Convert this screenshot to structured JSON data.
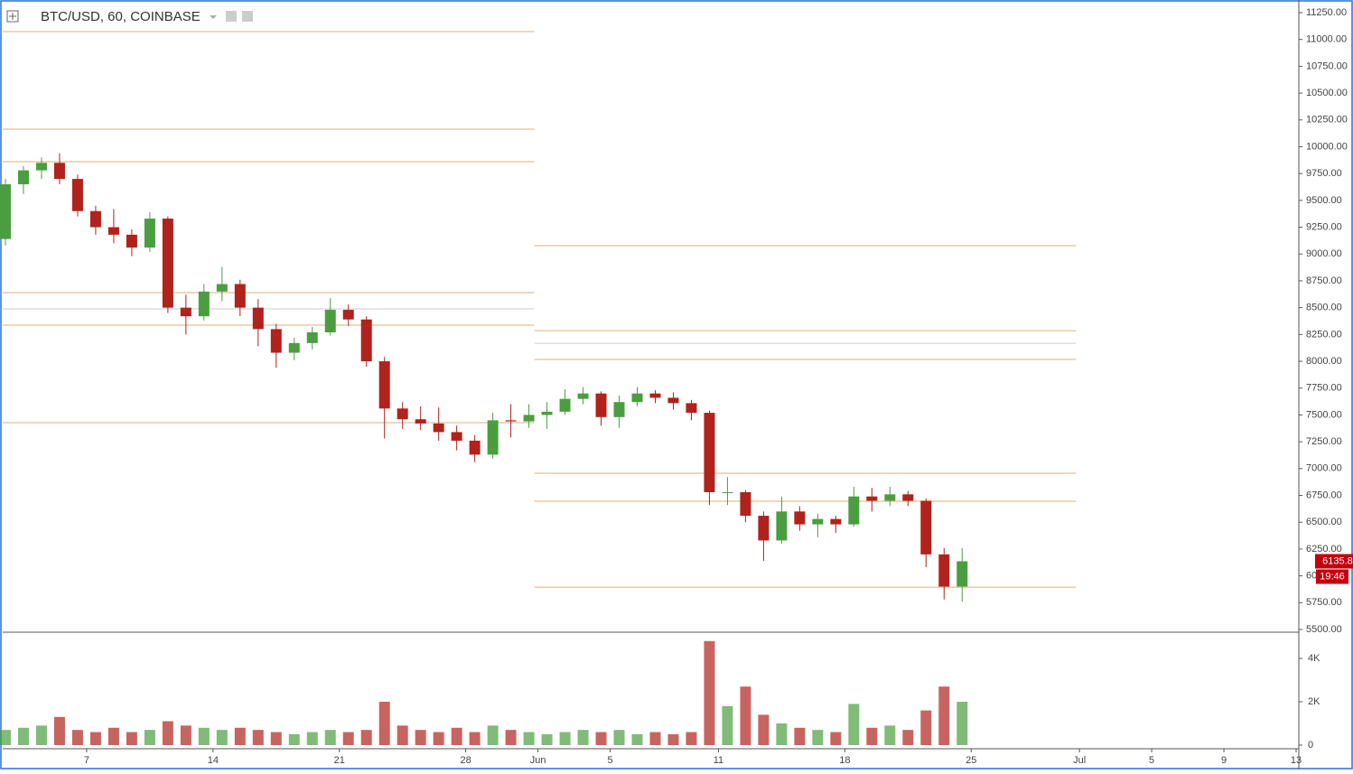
{
  "chart_data": {
    "type": "candlestick",
    "title": "BTC/USD, 60, COINBASE",
    "up_color": "#4a9e3f",
    "down_color": "#b0221b",
    "x": [
      2.5,
      3.5,
      4.5,
      5.5,
      6.5,
      7.5,
      8.5,
      9.5,
      10.5,
      11.5,
      12.5,
      13.5,
      14.5,
      15.5,
      16.5,
      17.5,
      18.5,
      19.5,
      20.5,
      21.5,
      22.5,
      23.5,
      24.5,
      25.5,
      26.5,
      27.5,
      28.5,
      29.5,
      30.5,
      31.5,
      32.5,
      33.5,
      34.5,
      35.5,
      36.5,
      37.5,
      38.5,
      39.5,
      40.5,
      41.5,
      42.5,
      43.5,
      44.5,
      45.5,
      46.5,
      47.5,
      48.5,
      49.5,
      50.5,
      51.5,
      52.5,
      53.5,
      54.5,
      55.5
    ],
    "open": [
      9140,
      9650,
      9780,
      9850,
      9700,
      9400,
      9250,
      9180,
      9060,
      9330,
      8500,
      8420,
      8650,
      8720,
      8500,
      8300,
      8080,
      8170,
      8270,
      8480,
      8390,
      8000,
      7560,
      7460,
      7420,
      7340,
      7260,
      7130,
      7450,
      7440,
      7500,
      7530,
      7650,
      7700,
      7480,
      7620,
      7700,
      7660,
      7610,
      7520,
      6780,
      6780,
      6560,
      6330,
      6600,
      6480,
      6530,
      6480,
      6740,
      6700,
      6760,
      6700,
      6200,
      5900
    ],
    "high": [
      9700,
      9820,
      9900,
      9940,
      9740,
      9450,
      9420,
      9230,
      9390,
      9350,
      8620,
      8720,
      8880,
      8760,
      8580,
      8350,
      8220,
      8320,
      8590,
      8530,
      8420,
      8040,
      7620,
      7580,
      7570,
      7400,
      7310,
      7520,
      7600,
      7600,
      7620,
      7740,
      7760,
      7720,
      7680,
      7760,
      7730,
      7710,
      7640,
      7540,
      6920,
      6800,
      6600,
      6740,
      6650,
      6580,
      6560,
      6830,
      6820,
      6830,
      6790,
      6720,
      6260,
      6260
    ],
    "low": [
      9080,
      9560,
      9700,
      9650,
      9350,
      9180,
      9100,
      8980,
      9020,
      8450,
      8250,
      8380,
      8560,
      8420,
      8140,
      7940,
      8010,
      8110,
      8240,
      8330,
      7950,
      7280,
      7370,
      7360,
      7260,
      7170,
      7060,
      7090,
      7290,
      7380,
      7370,
      7500,
      7600,
      7400,
      7380,
      7580,
      7610,
      7550,
      7450,
      6660,
      6660,
      6500,
      6140,
      6300,
      6420,
      6360,
      6400,
      6460,
      6600,
      6650,
      6650,
      6080,
      5780,
      5760
    ],
    "close": [
      9650,
      9780,
      9850,
      9700,
      9400,
      9250,
      9180,
      9060,
      9330,
      8500,
      8420,
      8650,
      8720,
      8500,
      8300,
      8080,
      8170,
      8270,
      8480,
      8390,
      8000,
      7560,
      7460,
      7420,
      7340,
      7260,
      7130,
      7450,
      7440,
      7500,
      7530,
      7650,
      7700,
      7480,
      7620,
      7700,
      7660,
      7610,
      7520,
      6780,
      6780,
      6560,
      6330,
      6600,
      6480,
      6530,
      6480,
      6740,
      6700,
      6760,
      6700,
      6200,
      5900,
      6135.8
    ],
    "xlim": [
      2.35,
      74.15
    ],
    "xticks": [
      7,
      14,
      21,
      28,
      {
        "value": 32,
        "label": "Jun"
      },
      {
        "value": 36,
        "label": "5"
      },
      {
        "value": 42,
        "label": "11"
      },
      {
        "value": 49,
        "label": "18"
      },
      {
        "value": 56,
        "label": "25"
      },
      {
        "value": 62,
        "label": "Jul"
      },
      {
        "value": 66,
        "label": "5"
      },
      {
        "value": 70,
        "label": "9"
      },
      {
        "value": 74,
        "label": "13"
      }
    ],
    "ylim": [
      5500,
      11250
    ],
    "yticks": [
      {
        "value": 5500,
        "label": "5500.00"
      },
      {
        "value": 5750,
        "label": "5750.00"
      },
      {
        "value": 6000,
        "label": "6000.00"
      },
      {
        "value": 6250,
        "label": "6250.00"
      },
      {
        "value": 6500,
        "label": "6500.00"
      },
      {
        "value": 6750,
        "label": "6750.00"
      },
      {
        "value": 7000,
        "label": "7000.00"
      },
      {
        "value": 7250,
        "label": "7250.00"
      },
      {
        "value": 7500,
        "label": "7500.00"
      },
      {
        "value": 7750,
        "label": "7750.00"
      },
      {
        "value": 8000,
        "label": "8000.00"
      },
      {
        "value": 8250,
        "label": "8250.00"
      },
      {
        "value": 8500,
        "label": "8500.00"
      },
      {
        "value": 8750,
        "label": "8750.00"
      },
      {
        "value": 9000,
        "label": "9000.00"
      },
      {
        "value": 9250,
        "label": "9250.00"
      },
      {
        "value": 9500,
        "label": "9500.00"
      },
      {
        "value": 9750,
        "label": "9750.00"
      },
      {
        "value": 10000,
        "label": "10000.00"
      },
      {
        "value": 10250,
        "label": "10250.00"
      },
      {
        "value": 10500,
        "label": "10500.00"
      },
      {
        "value": 10750,
        "label": "10750.00"
      },
      {
        "value": 11000,
        "label": "11000.00"
      },
      {
        "value": 11250,
        "label": "11250.00"
      }
    ],
    "last_price": {
      "value": 6135.8,
      "label": "6135.80"
    },
    "countdown": "19:46",
    "levels": [
      {
        "price": 11073,
        "from": 2.35,
        "to": 31.8,
        "color": "#d9b27c"
      },
      {
        "price": 10164,
        "from": 2.35,
        "to": 31.8,
        "color": "#d9b27c"
      },
      {
        "price": 9861,
        "from": 2.35,
        "to": 31.8,
        "color": "#d9b27c"
      },
      {
        "price": 8640,
        "from": 2.35,
        "to": 31.8,
        "color": "#d9b27c"
      },
      {
        "price": 8489,
        "from": 2.35,
        "to": 31.8,
        "color": "#cccccc"
      },
      {
        "price": 8337,
        "from": 2.35,
        "to": 31.8,
        "color": "#d9b27c"
      },
      {
        "price": 7428,
        "from": 2.35,
        "to": 31.8,
        "color": "#d9b27c"
      },
      {
        "price": 9078,
        "from": 31.8,
        "to": 61.8,
        "color": "#d9b27c"
      },
      {
        "price": 8286,
        "from": 31.8,
        "to": 61.8,
        "color": "#d9b27c"
      },
      {
        "price": 8168,
        "from": 31.8,
        "to": 61.8,
        "color": "#cccccc"
      },
      {
        "price": 8017,
        "from": 31.8,
        "to": 61.8,
        "color": "#d9b27c"
      },
      {
        "price": 6956,
        "from": 31.8,
        "to": 61.8,
        "color": "#d9b27c"
      },
      {
        "price": 6695,
        "from": 31.8,
        "to": 61.8,
        "color": "#d9b27c"
      },
      {
        "price": 5895,
        "from": 31.8,
        "to": 61.8,
        "color": "#d9b27c"
      }
    ],
    "volume": {
      "values": [
        700,
        800,
        900,
        1300,
        700,
        600,
        800,
        600,
        700,
        1100,
        900,
        800,
        700,
        800,
        700,
        600,
        500,
        600,
        700,
        600,
        700,
        2000,
        900,
        700,
        600,
        800,
        600,
        900,
        700,
        600,
        500,
        600,
        700,
        600,
        700,
        500,
        600,
        500,
        600,
        4800,
        1800,
        2700,
        1400,
        1000,
        800,
        700,
        600,
        1900,
        800,
        900,
        700,
        1600,
        2700,
        2000
      ],
      "ylim": [
        0,
        5083
      ],
      "yticks": [
        0,
        {
          "value": 2000,
          "label": "2K"
        },
        {
          "value": 4000,
          "label": "4K"
        }
      ]
    }
  }
}
